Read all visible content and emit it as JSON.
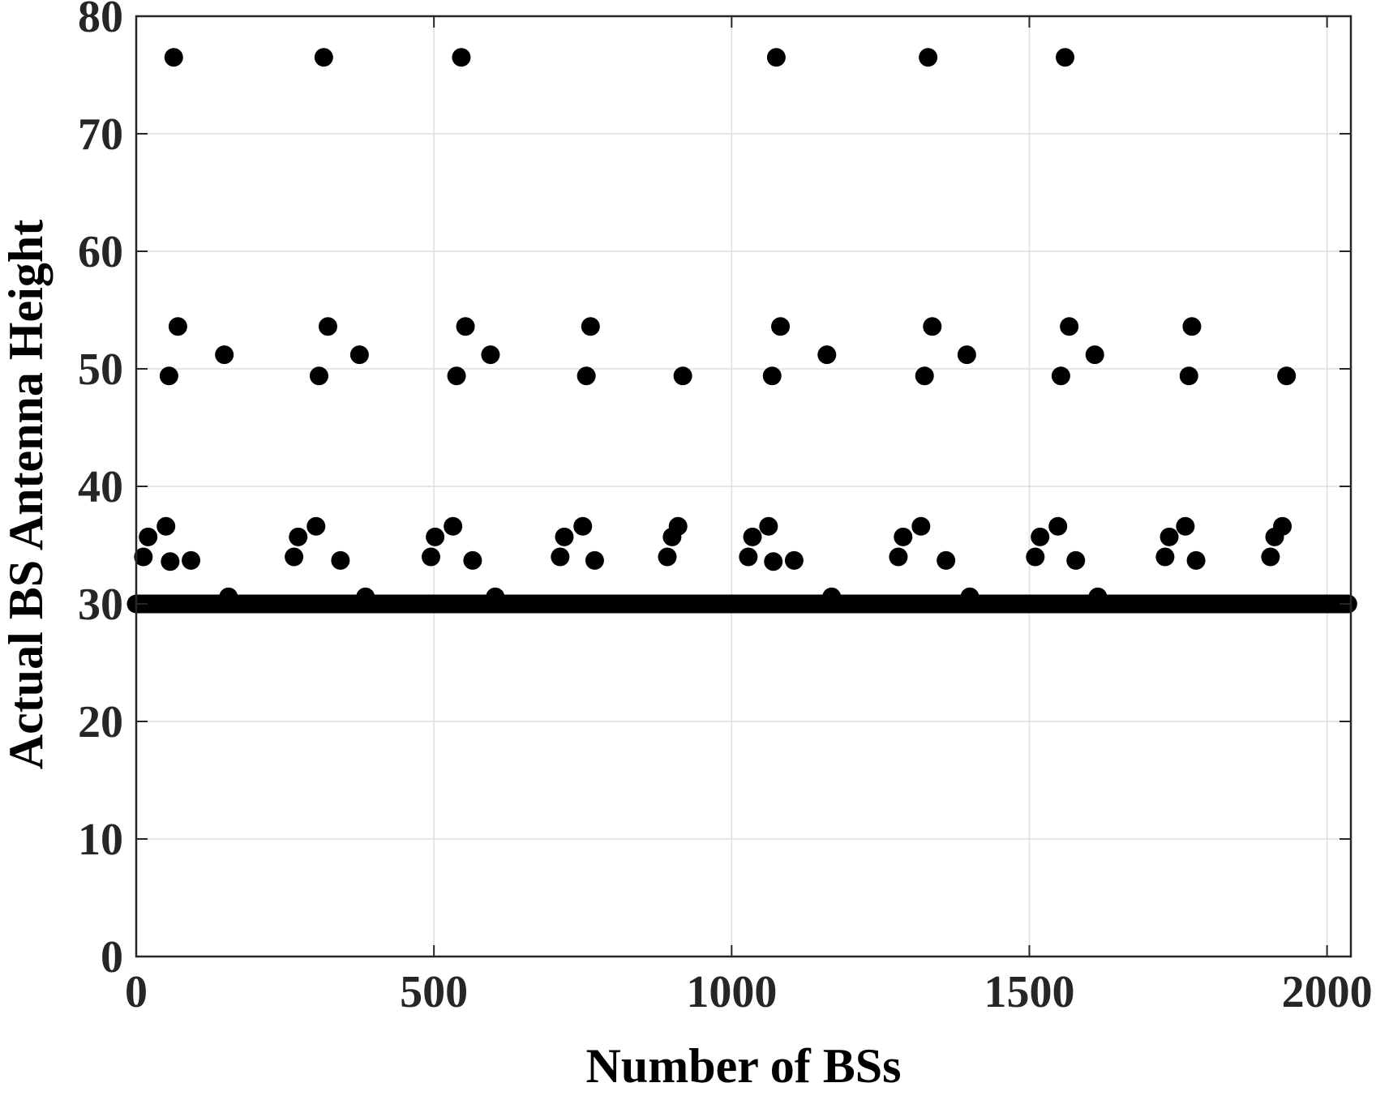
{
  "chart_data": {
    "type": "scatter",
    "title": "",
    "xlabel": "Number of BSs",
    "ylabel": "Actual BS Antenna Height",
    "xlim": [
      0,
      2040
    ],
    "ylim": [
      0,
      80
    ],
    "xticks": [
      0,
      500,
      1000,
      1500,
      2000
    ],
    "yticks": [
      0,
      10,
      20,
      30,
      40,
      50,
      60,
      70,
      80
    ],
    "grid": true,
    "legend": "none",
    "marker_color": "#000000",
    "baseline": {
      "y": 30,
      "x_start": 0,
      "x_end": 2035
    },
    "points": [
      {
        "x": 12,
        "y": 34
      },
      {
        "x": 20,
        "y": 35.7
      },
      {
        "x": 50,
        "y": 36.6
      },
      {
        "x": 55,
        "y": 49.4
      },
      {
        "x": 57,
        "y": 33.6
      },
      {
        "x": 63,
        "y": 76.5
      },
      {
        "x": 70,
        "y": 53.6
      },
      {
        "x": 92,
        "y": 33.7
      },
      {
        "x": 148,
        "y": 51.2
      },
      {
        "x": 155,
        "y": 30.6
      },
      {
        "x": 265,
        "y": 34
      },
      {
        "x": 272,
        "y": 35.7
      },
      {
        "x": 302,
        "y": 36.6
      },
      {
        "x": 307,
        "y": 49.4
      },
      {
        "x": 315,
        "y": 76.5
      },
      {
        "x": 322,
        "y": 53.6
      },
      {
        "x": 343,
        "y": 33.7
      },
      {
        "x": 375,
        "y": 51.2
      },
      {
        "x": 385,
        "y": 30.6
      },
      {
        "x": 495,
        "y": 34
      },
      {
        "x": 502,
        "y": 35.7
      },
      {
        "x": 532,
        "y": 36.6
      },
      {
        "x": 538,
        "y": 49.4
      },
      {
        "x": 546,
        "y": 76.5
      },
      {
        "x": 553,
        "y": 53.6
      },
      {
        "x": 565,
        "y": 33.7
      },
      {
        "x": 595,
        "y": 51.2
      },
      {
        "x": 603,
        "y": 30.6
      },
      {
        "x": 712,
        "y": 34
      },
      {
        "x": 719,
        "y": 35.7
      },
      {
        "x": 750,
        "y": 36.6
      },
      {
        "x": 756,
        "y": 49.4
      },
      {
        "x": 763,
        "y": 53.6
      },
      {
        "x": 770,
        "y": 33.7
      },
      {
        "x": 892,
        "y": 34
      },
      {
        "x": 900,
        "y": 35.7
      },
      {
        "x": 910,
        "y": 36.6
      },
      {
        "x": 918,
        "y": 49.4
      },
      {
        "x": 1028,
        "y": 34
      },
      {
        "x": 1035,
        "y": 35.7
      },
      {
        "x": 1062,
        "y": 36.6
      },
      {
        "x": 1068,
        "y": 49.4
      },
      {
        "x": 1070,
        "y": 33.6
      },
      {
        "x": 1075,
        "y": 76.5
      },
      {
        "x": 1082,
        "y": 53.6
      },
      {
        "x": 1105,
        "y": 33.7
      },
      {
        "x": 1160,
        "y": 51.2
      },
      {
        "x": 1168,
        "y": 30.6
      },
      {
        "x": 1280,
        "y": 34
      },
      {
        "x": 1288,
        "y": 35.7
      },
      {
        "x": 1318,
        "y": 36.6
      },
      {
        "x": 1324,
        "y": 49.4
      },
      {
        "x": 1330,
        "y": 76.5
      },
      {
        "x": 1337,
        "y": 53.6
      },
      {
        "x": 1360,
        "y": 33.7
      },
      {
        "x": 1395,
        "y": 51.2
      },
      {
        "x": 1400,
        "y": 30.6
      },
      {
        "x": 1510,
        "y": 34
      },
      {
        "x": 1518,
        "y": 35.7
      },
      {
        "x": 1548,
        "y": 36.6
      },
      {
        "x": 1553,
        "y": 49.4
      },
      {
        "x": 1560,
        "y": 76.5
      },
      {
        "x": 1567,
        "y": 53.6
      },
      {
        "x": 1578,
        "y": 33.7
      },
      {
        "x": 1610,
        "y": 51.2
      },
      {
        "x": 1615,
        "y": 30.6
      },
      {
        "x": 1728,
        "y": 34
      },
      {
        "x": 1735,
        "y": 35.7
      },
      {
        "x": 1762,
        "y": 36.6
      },
      {
        "x": 1768,
        "y": 49.4
      },
      {
        "x": 1773,
        "y": 53.6
      },
      {
        "x": 1780,
        "y": 33.7
      },
      {
        "x": 1905,
        "y": 34
      },
      {
        "x": 1912,
        "y": 35.7
      },
      {
        "x": 1925,
        "y": 36.6
      },
      {
        "x": 1932,
        "y": 49.4
      }
    ]
  }
}
